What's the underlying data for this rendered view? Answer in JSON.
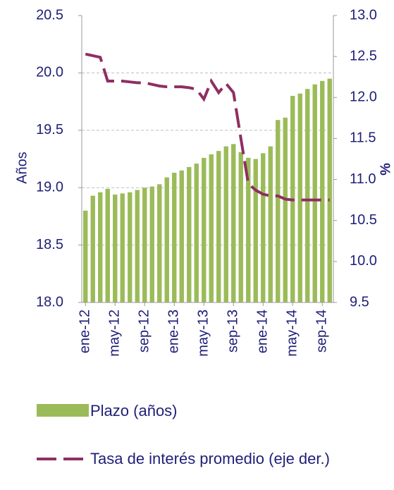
{
  "chart_data": {
    "type": "bar-line",
    "y_label": "Años",
    "y2_label": "%",
    "categories": [
      "ene-12",
      null,
      null,
      null,
      "may-12",
      null,
      null,
      null,
      "sep-12",
      null,
      null,
      null,
      "ene-13",
      null,
      null,
      null,
      "may-13",
      null,
      null,
      null,
      "sep-13",
      null,
      null,
      null,
      "ene-14",
      null,
      null,
      null,
      "may-14",
      null,
      null,
      null,
      "sep-14",
      null
    ],
    "series": [
      {
        "name": "Plazo (años)",
        "type": "bar",
        "color": "#9bbb59",
        "values": [
          18.8,
          18.93,
          18.96,
          18.99,
          18.94,
          18.95,
          18.96,
          18.98,
          19.0,
          19.01,
          19.03,
          19.09,
          19.13,
          19.15,
          19.18,
          19.21,
          19.26,
          19.29,
          19.32,
          19.36,
          19.38,
          19.31,
          19.26,
          19.25,
          19.3,
          19.36,
          19.59,
          19.61,
          19.8,
          19.82,
          19.86,
          19.9,
          19.93,
          19.95
        ]
      },
      {
        "name": "Tasa de interés promedio (eje der.)",
        "type": "line",
        "axis": "y2",
        "color": "#8e2f62",
        "dashed": true,
        "values": [
          12.53,
          12.51,
          12.49,
          12.2,
          12.2,
          12.2,
          12.19,
          12.18,
          12.18,
          12.16,
          12.14,
          12.13,
          12.13,
          12.13,
          12.12,
          12.1,
          11.98,
          12.2,
          12.06,
          12.17,
          12.06,
          11.5,
          10.95,
          10.87,
          10.82,
          10.8,
          10.8,
          10.76,
          10.75,
          10.75,
          10.75,
          10.75,
          10.75,
          10.75
        ]
      }
    ],
    "ylim": [
      18,
      20.5
    ],
    "yticks": [
      {
        "value": 18,
        "label": "18.0"
      },
      18.5,
      {
        "value": 19,
        "label": "19.0"
      },
      19.5,
      {
        "value": 20,
        "label": "20.0"
      },
      20.5
    ],
    "y2lim": [
      9.5,
      13
    ],
    "y2ticks": [
      9.5,
      {
        "value": 10,
        "label": "10.0"
      },
      10.5,
      {
        "value": 11,
        "label": "11.0"
      },
      11.5,
      {
        "value": 12,
        "label": "12.0"
      },
      12.5,
      {
        "value": 13,
        "label": "13.0"
      }
    ],
    "grid": true
  }
}
